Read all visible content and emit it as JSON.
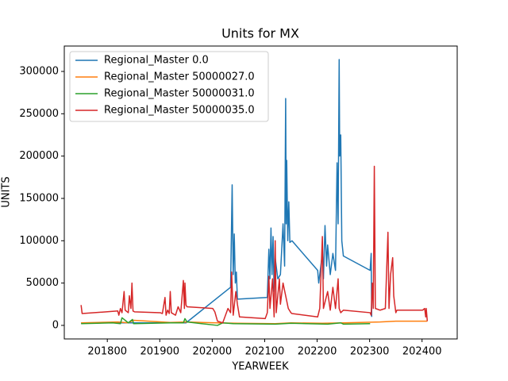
{
  "chart_data": {
    "type": "line",
    "title": "Units for MX",
    "xlabel": "YEARWEEK",
    "ylabel": "UNITS",
    "xlim": [
      201718,
      202467
    ],
    "ylim": [
      -16000,
      330000
    ],
    "xticks": [
      201800,
      201900,
      202000,
      202100,
      202200,
      202300,
      202400
    ],
    "yticks": [
      0,
      50000,
      100000,
      150000,
      200000,
      250000,
      300000
    ],
    "grid": false,
    "legend": "upper left",
    "series": [
      {
        "name": "Regional_Master 0.0",
        "color": "#1f77b4",
        "x": [
          201750,
          201800,
          201850,
          201900,
          201950,
          202035,
          202038,
          202040,
          202042,
          202044,
          202046,
          202048,
          202105,
          202108,
          202110,
          202112,
          202114,
          202116,
          202118,
          202120,
          202125,
          202130,
          202135,
          202138,
          202140,
          202141,
          202142,
          202144,
          202146,
          202148,
          202152,
          202201,
          202203,
          202210,
          202212,
          202215,
          202218,
          202220,
          202225,
          202230,
          202235,
          202238,
          202240,
          202242,
          202243,
          202245,
          202247,
          202250,
          202301,
          202303,
          202304
        ],
        "values": [
          3000,
          3000,
          3000,
          3000,
          3000,
          45000,
          166000,
          60000,
          108000,
          50000,
          63000,
          31000,
          33000,
          90000,
          55000,
          115000,
          60000,
          105000,
          40000,
          80000,
          55000,
          60000,
          120000,
          70000,
          268000,
          120000,
          195000,
          100000,
          146000,
          98000,
          100000,
          65000,
          50000,
          85000,
          55000,
          118000,
          70000,
          95000,
          60000,
          85000,
          65000,
          192000,
          120000,
          314000,
          200000,
          225000,
          100000,
          82000,
          65000,
          85000,
          10000
        ]
      },
      {
        "name": "Regional_Master 50000027.0",
        "color": "#ff7f0e",
        "x": [
          201750,
          201820,
          201840,
          201850,
          201920,
          201950,
          202010,
          202050,
          202120,
          202150,
          202210,
          202250,
          202320,
          202350,
          202410
        ],
        "values": [
          3000,
          4000,
          3000,
          6000,
          3500,
          4000,
          3000,
          2500,
          2000,
          3000,
          2500,
          3000,
          4000,
          5000,
          5000
        ]
      },
      {
        "name": "Regional_Master 50000031.0",
        "color": "#2ca02c",
        "x": [
          201750,
          201810,
          201825,
          201828,
          201840,
          201848,
          201850,
          201920,
          201945,
          201948,
          201952,
          202010,
          202020,
          202040,
          202120,
          202150,
          202220,
          202245,
          202250,
          202301
        ],
        "values": [
          2000,
          3000,
          2000,
          9000,
          3000,
          7000,
          2000,
          3000,
          3000,
          8000,
          4000,
          0,
          3000,
          2000,
          1500,
          2500,
          1500,
          3000,
          1500,
          2000
        ]
      },
      {
        "name": "Regional_Master 50000035.0",
        "color": "#d62728",
        "x": [
          201750,
          201752,
          201820,
          201822,
          201825,
          201828,
          201832,
          201834,
          201840,
          201842,
          201845,
          201847,
          201849,
          201852,
          201901,
          201905,
          201910,
          201912,
          201915,
          201918,
          201920,
          201922,
          201930,
          201935,
          201940,
          201945,
          201947,
          201948,
          201950,
          201952,
          202001,
          202005,
          202010,
          202020,
          202030,
          202035,
          202037,
          202040,
          202045,
          202048,
          202052,
          202101,
          202105,
          202108,
          202110,
          202115,
          202118,
          202120,
          202122,
          202128,
          202130,
          202135,
          202140,
          202145,
          202150,
          202152,
          202201,
          202205,
          202210,
          202212,
          202220,
          202225,
          202230,
          202235,
          202240,
          202242,
          202245,
          202250,
          202301,
          202303,
          202305,
          202307,
          202309,
          202311,
          202320,
          202330,
          202335,
          202337,
          202340,
          202344,
          202346,
          202350,
          202352,
          202401,
          202405,
          202407,
          202408,
          202410
        ],
        "values": [
          24000,
          14000,
          17000,
          12000,
          20000,
          15000,
          40000,
          18000,
          15000,
          35000,
          20000,
          50000,
          17000,
          16000,
          15000,
          14000,
          33000,
          12000,
          18000,
          14000,
          40000,
          15000,
          12000,
          22000,
          15000,
          53000,
          20000,
          50000,
          24000,
          22000,
          20000,
          16000,
          5000,
          3000,
          20000,
          15000,
          63000,
          12000,
          40000,
          25000,
          10000,
          8000,
          15000,
          58000,
          20000,
          55000,
          10000,
          100000,
          15000,
          55000,
          25000,
          50000,
          35000,
          20000,
          15000,
          14000,
          10000,
          20000,
          105000,
          20000,
          40000,
          18000,
          45000,
          20000,
          55000,
          20000,
          15000,
          18000,
          15000,
          12000,
          50000,
          20000,
          188000,
          20000,
          18000,
          20000,
          110000,
          20000,
          60000,
          80000,
          35000,
          15000,
          18000,
          18000,
          20000,
          10000,
          20000,
          5000
        ]
      }
    ]
  }
}
